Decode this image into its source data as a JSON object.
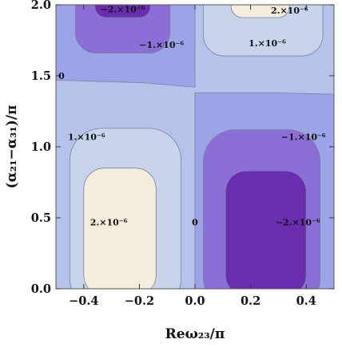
{
  "chart_data": {
    "type": "contour",
    "xlabel": "Reω₂₃/π",
    "ylabel": "(α₂₁−α₃₁)/π",
    "xlim": [
      -0.5,
      0.5
    ],
    "ylim": [
      0.0,
      2.0
    ],
    "x_ticks": [
      "−0.4",
      "−0.2",
      "0.0",
      "0.2",
      "0.4"
    ],
    "x_tick_values": [
      -0.4,
      -0.2,
      0.0,
      0.2,
      0.4
    ],
    "y_ticks": [
      "0.0",
      "0.5",
      "1.0",
      "1.5",
      "2.0"
    ],
    "y_tick_values": [
      0.0,
      0.5,
      1.0,
      1.5,
      2.0
    ],
    "contour_levels": [
      -2e-06,
      -1e-06,
      0,
      1e-06,
      2e-06
    ],
    "contour_labels": [
      {
        "text": "−2.×10⁻⁶",
        "x": -0.26,
        "y": 1.97
      },
      {
        "text": "−1.×10⁻⁶",
        "x": -0.12,
        "y": 1.72
      },
      {
        "text": "2.×10⁻⁶",
        "x": 0.34,
        "y": 1.96
      },
      {
        "text": "1.×10⁻⁶",
        "x": 0.26,
        "y": 1.73
      },
      {
        "text": "0",
        "x": -0.48,
        "y": 1.5
      },
      {
        "text": "1.×10⁻⁶",
        "x": -0.39,
        "y": 1.07
      },
      {
        "text": "−1.×10⁻⁶",
        "x": 0.39,
        "y": 1.07
      },
      {
        "text": "2.×10⁻⁶",
        "x": -0.31,
        "y": 0.47
      },
      {
        "text": "0",
        "x": 0.0,
        "y": 0.47
      },
      {
        "text": "−2.×10⁻⁶",
        "x": 0.37,
        "y": 0.47
      }
    ],
    "colors": {
      "level_minus2": "#6a2db0",
      "level_minus1": "#8b6fd6",
      "level_zero": "#9aa4e6",
      "level_plus1": "#c7d4ec",
      "level_plus2": "#f4ecdc",
      "base_band": "#b5c3ea"
    }
  }
}
